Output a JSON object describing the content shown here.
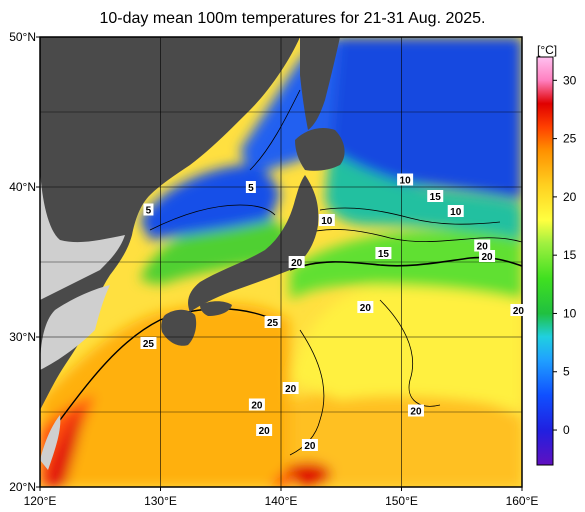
{
  "title": "10-day mean 100m temperatures for 21-31 Aug. 2025.",
  "map": {
    "lon_range": [
      120,
      160
    ],
    "lat_range": [
      20,
      50
    ],
    "lon_ticks": [
      {
        "value": 120,
        "label": "120°E"
      },
      {
        "value": 130,
        "label": "130°E"
      },
      {
        "value": 140,
        "label": "140°E"
      },
      {
        "value": 150,
        "label": "150°E"
      },
      {
        "value": 160,
        "label": "160°E"
      }
    ],
    "lat_ticks": [
      {
        "value": 20,
        "label": "20°N"
      },
      {
        "value": 30,
        "label": "30°N"
      },
      {
        "value": 40,
        "label": "40°N"
      },
      {
        "value": 50,
        "label": "50°N"
      }
    ],
    "grid": true,
    "colors": {
      "land": "#4a4a4a",
      "continent_land": "#cfcfcf",
      "grid_line": "#000000"
    }
  },
  "colorbar": {
    "unit_label": "[°C]",
    "range": [
      -3,
      32
    ],
    "ticks": [
      0,
      5,
      10,
      15,
      20,
      25,
      30
    ],
    "stops": [
      {
        "value": -3,
        "color": "#6010c0"
      },
      {
        "value": 0,
        "color": "#2020e0"
      },
      {
        "value": 3,
        "color": "#1050ff"
      },
      {
        "value": 6,
        "color": "#20a0ff"
      },
      {
        "value": 8,
        "color": "#20d0e0"
      },
      {
        "value": 10,
        "color": "#20c040"
      },
      {
        "value": 13,
        "color": "#40e020"
      },
      {
        "value": 16,
        "color": "#a0f040"
      },
      {
        "value": 18,
        "color": "#ffff40"
      },
      {
        "value": 21,
        "color": "#ffd020"
      },
      {
        "value": 24,
        "color": "#ff9000"
      },
      {
        "value": 26,
        "color": "#ff4000"
      },
      {
        "value": 28,
        "color": "#e00000"
      },
      {
        "value": 30,
        "color": "#ff80c0"
      },
      {
        "value": 32,
        "color": "#ffc0f0"
      }
    ]
  },
  "contour_labels": [
    {
      "text": "5",
      "lon": 137.5,
      "lat": 40.0
    },
    {
      "text": "5",
      "lon": 129.0,
      "lat": 38.5
    },
    {
      "text": "10",
      "lon": 150.3,
      "lat": 40.5
    },
    {
      "text": "15",
      "lon": 152.8,
      "lat": 39.4
    },
    {
      "text": "10",
      "lon": 154.5,
      "lat": 38.4
    },
    {
      "text": "10",
      "lon": 143.8,
      "lat": 37.8
    },
    {
      "text": "20",
      "lon": 141.3,
      "lat": 35.0
    },
    {
      "text": "15",
      "lon": 148.5,
      "lat": 35.6
    },
    {
      "text": "20",
      "lon": 156.7,
      "lat": 36.1
    },
    {
      "text": "20",
      "lon": 157.1,
      "lat": 35.4
    },
    {
      "text": "20",
      "lon": 159.7,
      "lat": 31.8
    },
    {
      "text": "20",
      "lon": 147.0,
      "lat": 32.0
    },
    {
      "text": "25",
      "lon": 139.3,
      "lat": 31.0
    },
    {
      "text": "25",
      "lon": 129.0,
      "lat": 29.6
    },
    {
      "text": "20",
      "lon": 140.8,
      "lat": 26.6
    },
    {
      "text": "20",
      "lon": 138.0,
      "lat": 25.5
    },
    {
      "text": "20",
      "lon": 138.6,
      "lat": 23.8
    },
    {
      "text": "20",
      "lon": 142.4,
      "lat": 22.8
    },
    {
      "text": "20",
      "lon": 151.2,
      "lat": 25.1
    }
  ]
}
